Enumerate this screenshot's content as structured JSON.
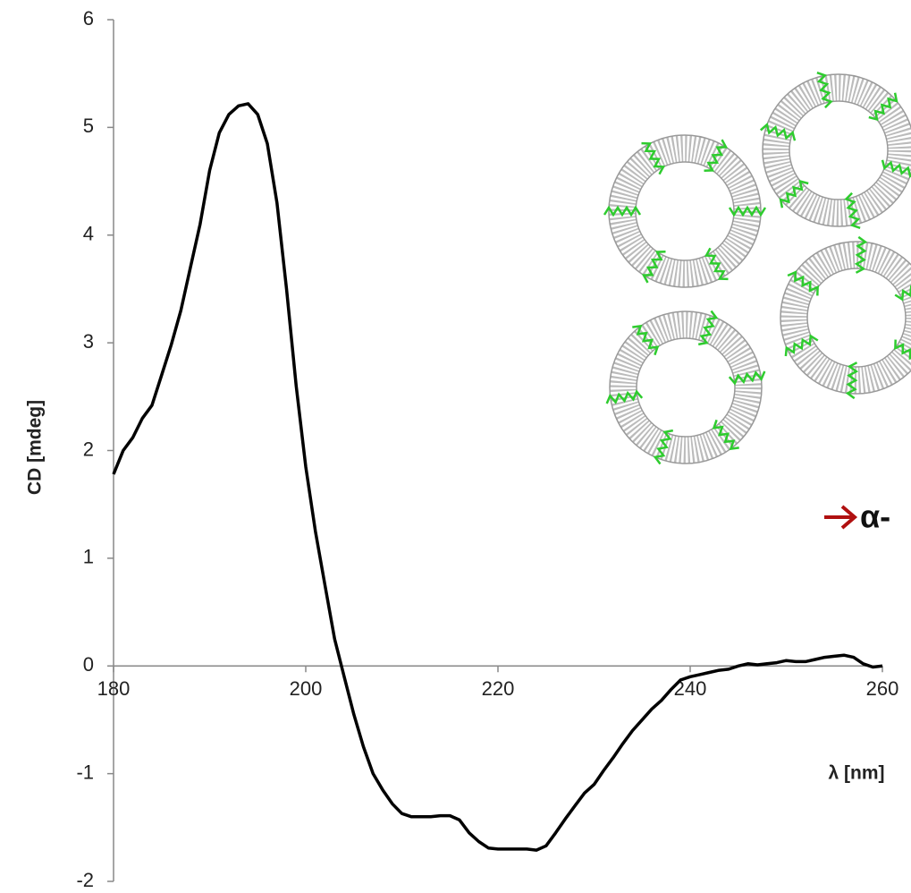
{
  "chart_data": {
    "type": "line",
    "ylabel": "CD [mdeg]",
    "xlabel": "λ [nm]",
    "annotation": "α-",
    "color": "#000000",
    "xlim": [
      180,
      260
    ],
    "xticks": [
      180,
      200,
      220,
      240,
      260
    ],
    "ylim": [
      -2,
      6
    ],
    "yticks": [
      -2,
      -1,
      0,
      1,
      2,
      3,
      4,
      5,
      6
    ],
    "x": [
      180,
      181,
      182,
      183,
      184,
      185,
      186,
      187,
      188,
      189,
      190,
      191,
      192,
      193,
      194,
      195,
      196,
      197,
      198,
      199,
      200,
      201,
      202,
      203,
      204,
      205,
      206,
      207,
      208,
      209,
      210,
      211,
      212,
      213,
      214,
      215,
      216,
      217,
      218,
      219,
      220,
      221,
      222,
      223,
      224,
      225,
      226,
      227,
      228,
      229,
      230,
      231,
      232,
      233,
      234,
      235,
      236,
      237,
      238,
      239,
      240,
      241,
      242,
      243,
      244,
      245,
      246,
      247,
      248,
      249,
      250,
      251,
      252,
      253,
      254,
      255,
      256,
      257,
      258,
      259,
      260
    ],
    "values": [
      1.78,
      2.0,
      2.12,
      2.3,
      2.42,
      2.7,
      2.98,
      3.3,
      3.7,
      4.1,
      4.6,
      4.95,
      5.12,
      5.2,
      5.22,
      5.12,
      4.85,
      4.3,
      3.5,
      2.6,
      1.85,
      1.25,
      0.75,
      0.25,
      -0.1,
      -0.45,
      -0.75,
      -1.0,
      -1.15,
      -1.28,
      -1.37,
      -1.4,
      -1.4,
      -1.4,
      -1.39,
      -1.39,
      -1.43,
      -1.55,
      -1.63,
      -1.69,
      -1.7,
      -1.7,
      -1.7,
      -1.7,
      -1.71,
      -1.67,
      -1.55,
      -1.42,
      -1.3,
      -1.18,
      -1.1,
      -0.97,
      -0.85,
      -0.72,
      -0.6,
      -0.5,
      -0.4,
      -0.32,
      -0.22,
      -0.13,
      -0.1,
      -0.08,
      -0.06,
      -0.04,
      -0.03,
      0.0,
      0.02,
      0.01,
      0.02,
      0.03,
      0.05,
      0.04,
      0.04,
      0.06,
      0.08,
      0.09,
      0.1,
      0.08,
      0.02,
      -0.01,
      0.0
    ]
  }
}
